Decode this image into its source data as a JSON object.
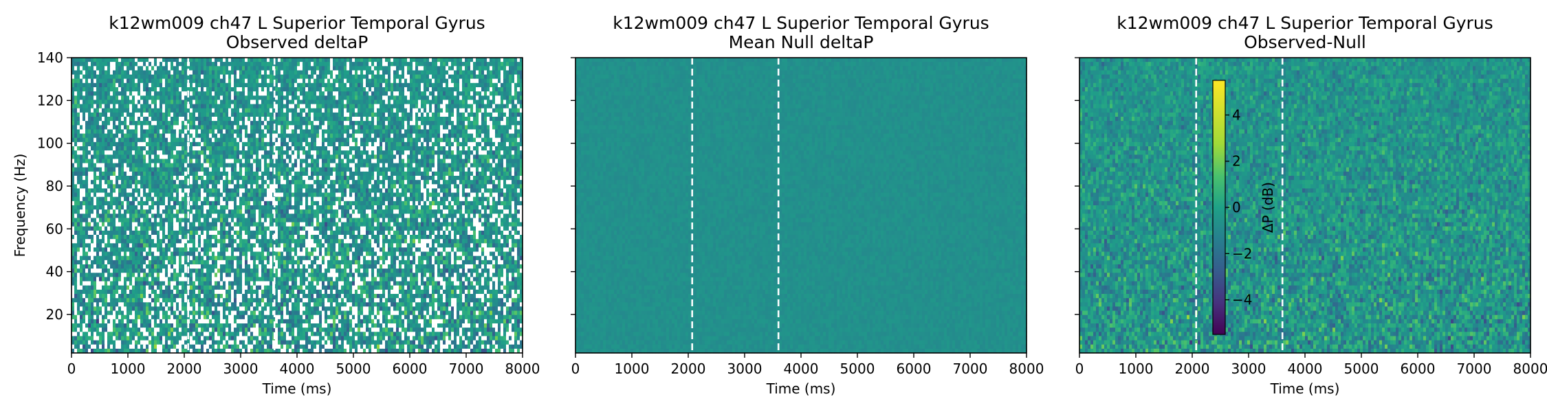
{
  "colormap": "viridis",
  "vline_color": "#ffffff",
  "chart_data": [
    {
      "type": "heatmap",
      "title_line1": "k12wm009 ch47 L Superior Temporal Gyrus",
      "title_line2": "Observed deltaP",
      "xlabel": "Time (ms)",
      "ylabel": "Frequency (Hz)",
      "xlim": [
        0,
        8000
      ],
      "ylim": [
        2,
        140
      ],
      "xticks": [
        "0",
        "1000",
        "2000",
        "3000",
        "4000",
        "5000",
        "6000",
        "7000",
        "8000"
      ],
      "yticks": [
        "20",
        "40",
        "60",
        "80",
        "100",
        "120",
        "140"
      ],
      "vlines_ms": [
        2070,
        3600
      ],
      "color_range": [
        -5,
        5
      ],
      "masked_white_regions": true
    },
    {
      "type": "heatmap",
      "title_line1": "k12wm009 ch47 L Superior Temporal Gyrus",
      "title_line2": "Mean Null deltaP",
      "xlabel": "Time (ms)",
      "ylabel": "",
      "xlim": [
        0,
        8000
      ],
      "ylim": [
        2,
        140
      ],
      "xticks": [
        "0",
        "1000",
        "2000",
        "3000",
        "4000",
        "5000",
        "6000",
        "7000",
        "8000"
      ],
      "yticks": [],
      "vlines_ms": [
        2070,
        3600
      ],
      "color_range": [
        -5,
        5
      ],
      "masked_white_regions": false
    },
    {
      "type": "heatmap",
      "title_line1": "k12wm009 ch47 L Superior Temporal Gyrus",
      "title_line2": "Observed-Null",
      "xlabel": "Time (ms)",
      "ylabel": "",
      "xlim": [
        0,
        8000
      ],
      "ylim": [
        2,
        140
      ],
      "xticks": [
        "0",
        "1000",
        "2000",
        "3000",
        "4000",
        "5000",
        "6000",
        "7000",
        "8000"
      ],
      "yticks": [],
      "vlines_ms": [
        2070,
        3600
      ],
      "color_range": [
        -5,
        5
      ],
      "masked_white_regions": false,
      "colorbar": {
        "label": "ΔP (dB)",
        "range": [
          -5.5,
          5.5
        ],
        "ticks": [
          4,
          2,
          0,
          -2,
          -4
        ],
        "tick_labels": [
          "4",
          "2",
          "0",
          "−2",
          "−4"
        ]
      }
    }
  ]
}
